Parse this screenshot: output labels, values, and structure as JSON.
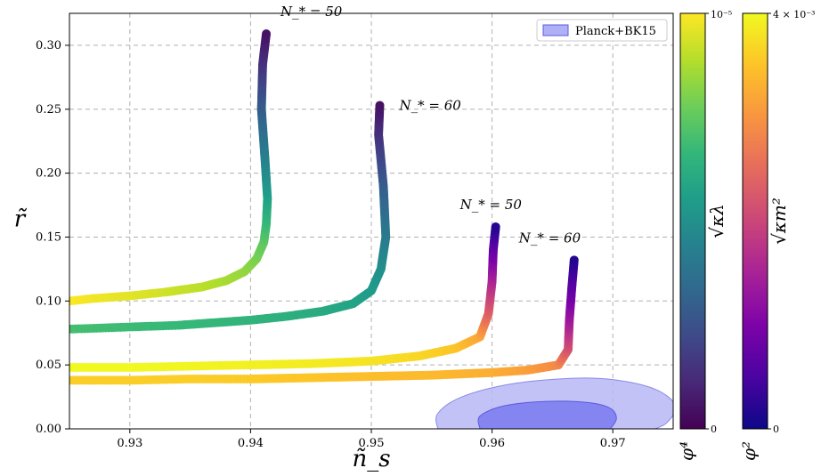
{
  "chart_data": {
    "type": "scatter",
    "xlabel": "ñ_s",
    "ylabel": "r̃",
    "xlim": [
      0.925,
      0.975
    ],
    "ylim": [
      0.0,
      0.325
    ],
    "xticks": [
      0.93,
      0.94,
      0.95,
      0.96,
      0.97
    ],
    "xtick_labels": [
      "0.93",
      "0.94",
      "0.95",
      "0.96",
      "0.97"
    ],
    "yticks": [
      0.0,
      0.05,
      0.1,
      0.15,
      0.2,
      0.25,
      0.3
    ],
    "ytick_labels": [
      "0.00",
      "0.05",
      "0.10",
      "0.15",
      "0.20",
      "0.25",
      "0.30"
    ],
    "grid": true,
    "legend": {
      "placement": "top-right",
      "label": "Planck+BK15",
      "color": "#7b7bf0"
    },
    "contours": {
      "outer_68_95": {
        "label": "Planck+BK15 (95%)",
        "color": "#b7b7f5",
        "points": [
          [
            0.9555,
            0.0
          ],
          [
            0.9555,
            0.012
          ],
          [
            0.9575,
            0.025
          ],
          [
            0.9615,
            0.035
          ],
          [
            0.9665,
            0.0395
          ],
          [
            0.97,
            0.0385
          ],
          [
            0.9735,
            0.031
          ],
          [
            0.9752,
            0.018
          ],
          [
            0.9745,
            0.005
          ],
          [
            0.9735,
            0.0
          ]
        ]
      },
      "inner": {
        "label": "Planck+BK15 (68%)",
        "color": "#8282f0",
        "points": [
          [
            0.959,
            0.0
          ],
          [
            0.959,
            0.01
          ],
          [
            0.961,
            0.018
          ],
          [
            0.9645,
            0.0215
          ],
          [
            0.968,
            0.0205
          ],
          [
            0.9698,
            0.016
          ],
          [
            0.9703,
            0.008
          ],
          [
            0.9698,
            0.0
          ]
        ]
      }
    },
    "series": [
      {
        "model": "phi4",
        "colormap": "viridis",
        "annotation": "N_* = 50",
        "x": [
          0.925,
          0.927,
          0.93,
          0.933,
          0.936,
          0.938,
          0.9395,
          0.9405,
          0.9411,
          0.9413,
          0.9414,
          0.9412,
          0.9409,
          0.941,
          0.9413
        ],
        "y": [
          0.1,
          0.102,
          0.104,
          0.107,
          0.111,
          0.116,
          0.123,
          0.133,
          0.146,
          0.16,
          0.18,
          0.21,
          0.25,
          0.285,
          0.309
        ],
        "c": [
          1.0,
          0.98,
          0.96,
          0.93,
          0.9,
          0.87,
          0.84,
          0.8,
          0.75,
          0.68,
          0.58,
          0.45,
          0.3,
          0.15,
          0.05
        ]
      },
      {
        "model": "phi4",
        "colormap": "viridis",
        "annotation": "N_* = 60",
        "x": [
          0.925,
          0.928,
          0.931,
          0.934,
          0.937,
          0.94,
          0.943,
          0.946,
          0.9485,
          0.95,
          0.9508,
          0.9512,
          0.951,
          0.9506,
          0.9507
        ],
        "y": [
          0.078,
          0.079,
          0.08,
          0.081,
          0.083,
          0.085,
          0.088,
          0.092,
          0.098,
          0.108,
          0.125,
          0.15,
          0.19,
          0.23,
          0.253
        ],
        "c": [
          0.7,
          0.69,
          0.68,
          0.67,
          0.66,
          0.65,
          0.63,
          0.61,
          0.58,
          0.55,
          0.5,
          0.42,
          0.3,
          0.15,
          0.05
        ]
      },
      {
        "model": "phi2",
        "colormap": "plasma",
        "annotation": "N_* = 50",
        "x": [
          0.925,
          0.93,
          0.935,
          0.94,
          0.945,
          0.95,
          0.954,
          0.957,
          0.959,
          0.9597,
          0.96,
          0.9601,
          0.9603
        ],
        "y": [
          0.048,
          0.048,
          0.049,
          0.05,
          0.051,
          0.053,
          0.057,
          0.063,
          0.072,
          0.09,
          0.115,
          0.14,
          0.158
        ],
        "c": [
          1.0,
          1.0,
          0.99,
          0.98,
          0.97,
          0.95,
          0.92,
          0.88,
          0.8,
          0.6,
          0.4,
          0.2,
          0.05
        ]
      },
      {
        "model": "phi2",
        "colormap": "plasma",
        "annotation": "N_* = 60",
        "x": [
          0.925,
          0.93,
          0.935,
          0.94,
          0.945,
          0.95,
          0.955,
          0.96,
          0.963,
          0.9655,
          0.9663,
          0.9664,
          0.9666,
          0.9668
        ],
        "y": [
          0.038,
          0.038,
          0.039,
          0.039,
          0.04,
          0.041,
          0.042,
          0.044,
          0.046,
          0.05,
          0.062,
          0.085,
          0.11,
          0.132
        ],
        "c": [
          0.9,
          0.9,
          0.9,
          0.89,
          0.88,
          0.86,
          0.85,
          0.82,
          0.78,
          0.72,
          0.55,
          0.35,
          0.18,
          0.05
        ]
      }
    ],
    "colorbars": [
      {
        "id": "phi4",
        "label": "√κλ",
        "model_label": "φ⁴",
        "colormap": "viridis",
        "min_label": "0",
        "max_label": "10⁻⁵"
      },
      {
        "id": "phi2",
        "label": "√κm²",
        "model_label": "φ²",
        "colormap": "plasma",
        "min_label": "0",
        "max_label": "4 × 10⁻³"
      }
    ]
  }
}
